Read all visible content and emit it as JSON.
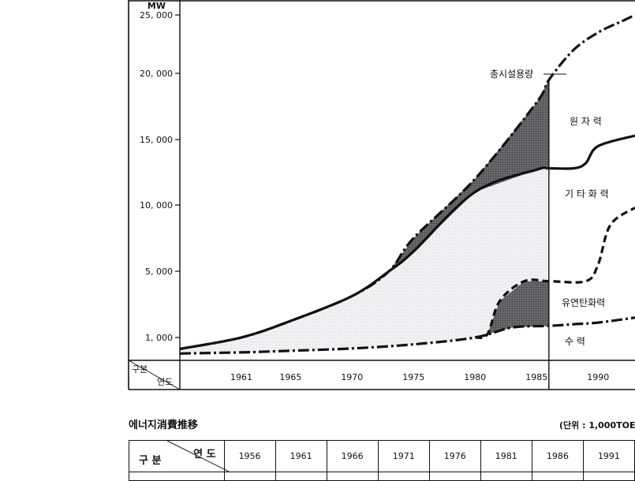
{
  "chart_data": {
    "type": "area",
    "y_unit_label": "MW",
    "y_ticks": [
      "25, 000",
      "20, 000",
      "15, 000",
      "10, 000",
      "5, 000",
      "1, 000"
    ],
    "x_ticks": [
      "1961",
      "1965",
      "1970",
      "1975",
      "1980",
      "1985",
      "1990"
    ],
    "corner_top": "구분",
    "corner_bottom": "연도",
    "series": [
      {
        "name": "총시설용량",
        "style": "dash-dot",
        "x": [
          1956,
          1961,
          1965,
          1970,
          1973,
          1975,
          1980,
          1985,
          1986,
          1988,
          1990,
          1992,
          1993
        ],
        "y": [
          500,
          1000,
          2000,
          3500,
          5000,
          7500,
          12000,
          17800,
          19500,
          22000,
          23500,
          24500,
          25000
        ]
      },
      {
        "name": "기타화력",
        "style": "solid",
        "x": [
          1956,
          1961,
          1965,
          1970,
          1973,
          1975,
          1980,
          1985,
          1986,
          1988,
          1989,
          1990,
          1993
        ],
        "y": [
          500,
          1000,
          2000,
          3500,
          5000,
          6500,
          11000,
          12700,
          12800,
          12800,
          13200,
          14500,
          15300
        ]
      },
      {
        "name": "유연탄화력",
        "style": "dashed",
        "x": [
          1980,
          1981,
          1982,
          1984,
          1986,
          1989,
          1990,
          1991,
          1993
        ],
        "y": [
          1000,
          1200,
          3200,
          4400,
          4400,
          4400,
          5500,
          8500,
          9800
        ]
      },
      {
        "name": "수력",
        "style": "dash-dot",
        "x": [
          1956,
          1961,
          1965,
          1970,
          1975,
          1980,
          1983,
          1986,
          1988,
          1990,
          1993
        ],
        "y": [
          300,
          350,
          420,
          520,
          700,
          1000,
          1600,
          1700,
          1800,
          1900,
          2200
        ]
      }
    ],
    "region_labels": [
      "원 자 력",
      "기 타 화 력",
      "유연탄화력",
      "수     력"
    ],
    "annotation": "총시설용량",
    "xlim": [
      1956,
      1993
    ],
    "ylim": [
      0,
      25000
    ],
    "grid": false
  },
  "table": {
    "title": "에너지消費推移",
    "unit": "(단위 : 1,000TOE)",
    "corner_left": "구 분",
    "corner_right": "연 도",
    "years": [
      "1956",
      "1961",
      "1966",
      "1971",
      "1976",
      "1981",
      "1986",
      "1991"
    ]
  }
}
